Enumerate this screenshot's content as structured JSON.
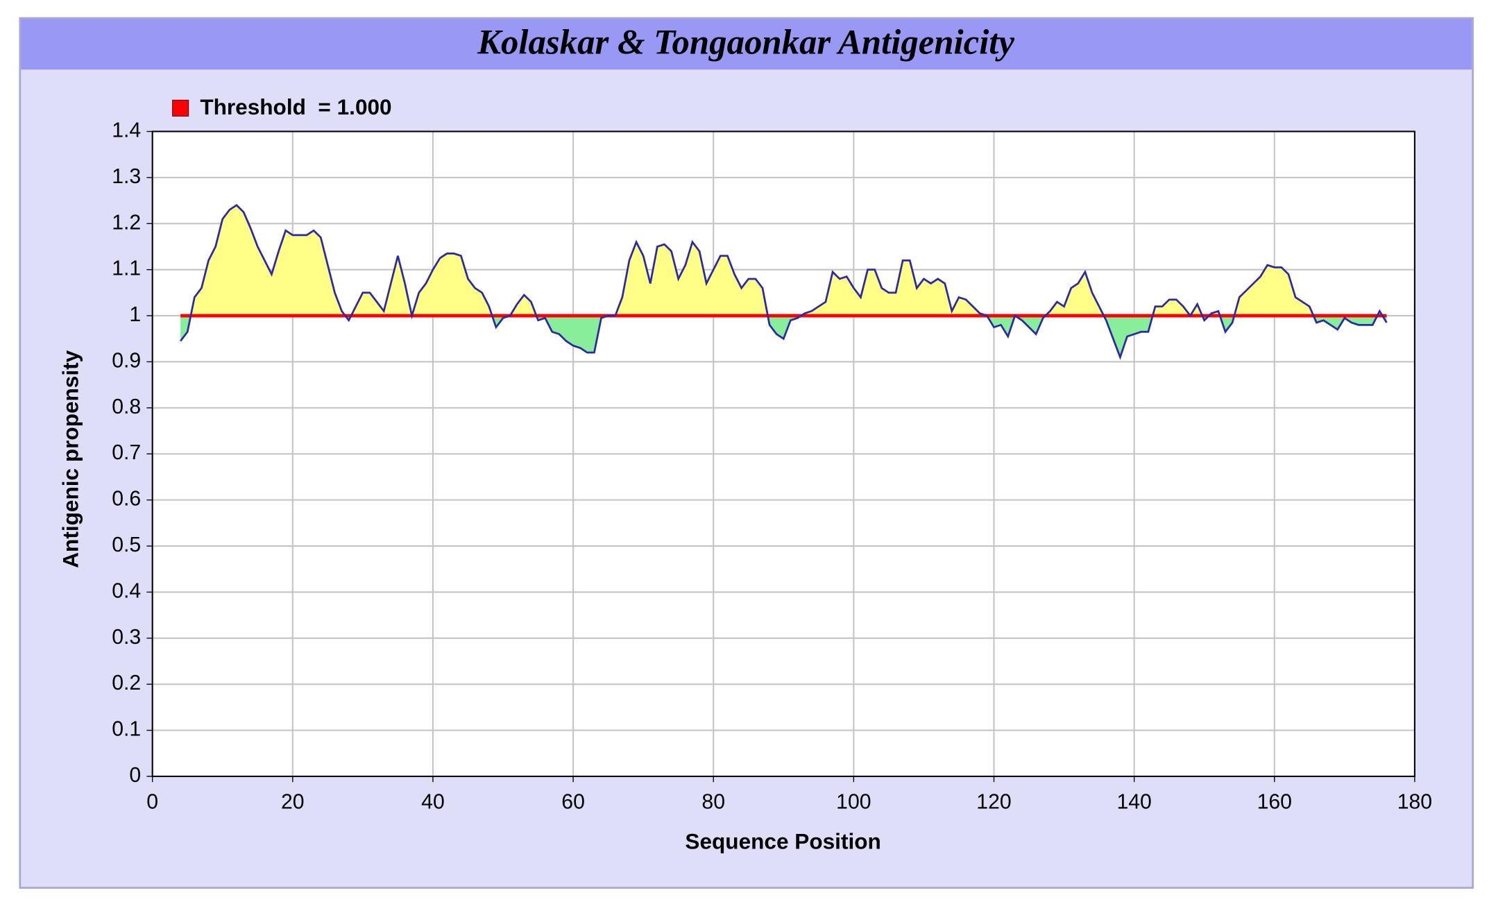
{
  "chart_data": {
    "type": "line",
    "title": "Kolaskar & Tongaonkar Antigenicity",
    "threshold": 1,
    "threshold_label": "Threshold  = 1.000",
    "threshold_color": "#ff0000",
    "xlabel": "Sequence Position",
    "ylabel": "Antigenic propensity",
    "xlim": [
      0,
      180
    ],
    "xticks": [
      0,
      20,
      40,
      60,
      80,
      100,
      120,
      140,
      160,
      180
    ],
    "ylim": [
      0,
      1.4
    ],
    "yticks": [
      0,
      0.1,
      0.2,
      0.3,
      0.4,
      0.5,
      0.6,
      0.7,
      0.8,
      0.9,
      1,
      1.1,
      1.2,
      1.3,
      1.4
    ],
    "grid": true,
    "color": "#2a2aa8",
    "fill_above": "#ffff88",
    "fill_below": "#88ee99",
    "x": [
      4,
      5,
      6,
      7,
      8,
      9,
      10,
      11,
      12,
      13,
      14,
      15,
      16,
      17,
      18,
      19,
      20,
      21,
      22,
      23,
      24,
      25,
      26,
      27,
      28,
      29,
      30,
      31,
      32,
      33,
      34,
      35,
      36,
      37,
      38,
      39,
      40,
      41,
      42,
      43,
      44,
      45,
      46,
      47,
      48,
      49,
      50,
      51,
      52,
      53,
      54,
      55,
      56,
      57,
      58,
      59,
      60,
      61,
      62,
      63,
      64,
      65,
      66,
      67,
      68,
      69,
      70,
      71,
      72,
      73,
      74,
      75,
      76,
      77,
      78,
      79,
      80,
      81,
      82,
      83,
      84,
      85,
      86,
      87,
      88,
      89,
      90,
      91,
      92,
      93,
      94,
      95,
      96,
      97,
      98,
      99,
      100,
      101,
      102,
      103,
      104,
      105,
      106,
      107,
      108,
      109,
      110,
      111,
      112,
      113,
      114,
      115,
      116,
      117,
      118,
      119,
      120,
      121,
      122,
      123,
      124,
      125,
      126,
      127,
      128,
      129,
      130,
      131,
      132,
      133,
      134,
      135,
      136,
      137,
      138,
      139,
      140,
      141,
      142,
      143,
      144,
      145,
      146,
      147,
      148,
      149,
      150,
      151,
      152,
      153,
      154,
      155,
      156,
      157,
      158,
      159,
      160,
      161,
      162,
      163,
      164,
      165,
      166,
      167,
      168,
      169,
      170,
      171,
      172,
      173,
      174,
      175,
      176
    ],
    "values": [
      0.945,
      0.965,
      1.04,
      1.06,
      1.12,
      1.15,
      1.21,
      1.23,
      1.24,
      1.225,
      1.19,
      1.15,
      1.12,
      1.09,
      1.14,
      1.185,
      1.175,
      1.175,
      1.175,
      1.185,
      1.17,
      1.11,
      1.05,
      1.01,
      0.99,
      1.02,
      1.05,
      1.05,
      1.03,
      1.01,
      1.07,
      1.13,
      1.07,
      1.0,
      1.05,
      1.07,
      1.1,
      1.125,
      1.135,
      1.135,
      1.13,
      1.08,
      1.06,
      1.05,
      1.02,
      0.975,
      0.995,
      1.0,
      1.025,
      1.045,
      1.03,
      0.99,
      0.995,
      0.965,
      0.96,
      0.945,
      0.935,
      0.93,
      0.92,
      0.92,
      0.995,
      1.0,
      1.0,
      1.04,
      1.12,
      1.16,
      1.13,
      1.07,
      1.15,
      1.155,
      1.14,
      1.08,
      1.11,
      1.16,
      1.14,
      1.07,
      1.1,
      1.13,
      1.13,
      1.09,
      1.06,
      1.08,
      1.08,
      1.06,
      0.98,
      0.96,
      0.95,
      0.99,
      0.995,
      1.005,
      1.01,
      1.02,
      1.03,
      1.095,
      1.08,
      1.085,
      1.06,
      1.04,
      1.1,
      1.1,
      1.06,
      1.05,
      1.05,
      1.12,
      1.12,
      1.06,
      1.08,
      1.07,
      1.08,
      1.07,
      1.01,
      1.04,
      1.035,
      1.02,
      1.005,
      1.0,
      0.975,
      0.98,
      0.955,
      1.0,
      0.99,
      0.975,
      0.96,
      0.995,
      1.01,
      1.03,
      1.02,
      1.06,
      1.07,
      1.095,
      1.05,
      1.02,
      0.99,
      0.95,
      0.91,
      0.955,
      0.96,
      0.965,
      0.965,
      1.02,
      1.02,
      1.035,
      1.035,
      1.02,
      1.0,
      1.025,
      0.99,
      1.005,
      1.01,
      0.965,
      0.985,
      1.04,
      1.055,
      1.07,
      1.085,
      1.11,
      1.105,
      1.105,
      1.09,
      1.04,
      1.03,
      1.02,
      0.985,
      0.99,
      0.98,
      0.97,
      0.995,
      0.985,
      0.98,
      0.98,
      0.98,
      1.01,
      0.985
    ]
  }
}
